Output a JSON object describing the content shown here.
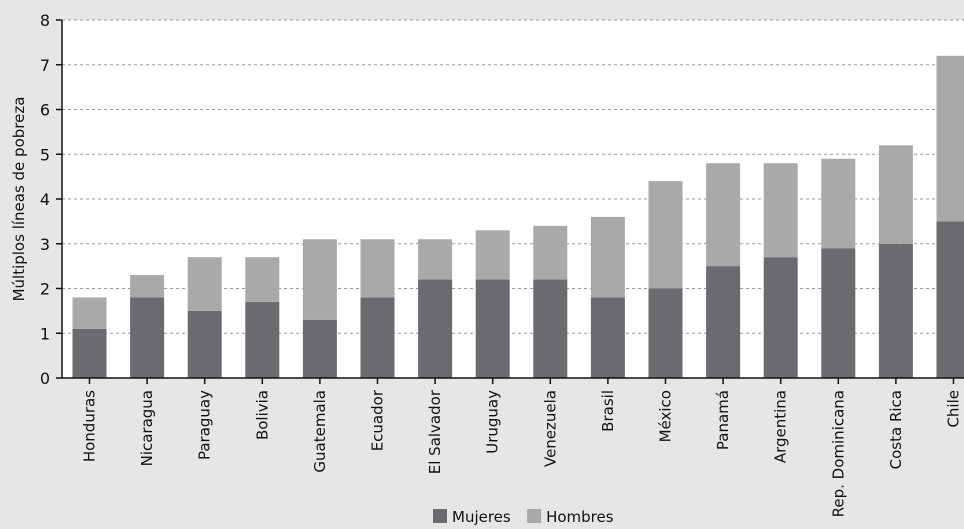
{
  "chart_data": {
    "type": "bar",
    "stacked": true,
    "title": "",
    "xlabel": "",
    "ylabel": "Múltiplos líneas de pobreza",
    "ylim": [
      0,
      8
    ],
    "yticks": [
      0,
      1,
      2,
      3,
      4,
      5,
      6,
      7,
      8
    ],
    "grid": true,
    "legend_position": "bottom-center",
    "categories": [
      "Honduras",
      "Nicaragua",
      "Paraguay",
      "Bolivia",
      "Guatemala",
      "Ecuador",
      "El Salvador",
      "Uruguay",
      "Venezuela",
      "Brasil",
      "México",
      "Panamá",
      "Argentina",
      "Rep. Dominicana",
      "Costa Rica",
      "Chile"
    ],
    "series": [
      {
        "name": "Mujeres",
        "color": "#6b6b6f",
        "values": [
          1.1,
          1.8,
          1.5,
          1.7,
          1.3,
          1.8,
          2.2,
          2.2,
          2.2,
          1.8,
          2.0,
          2.5,
          2.7,
          2.9,
          3.0,
          3.5
        ]
      },
      {
        "name": "Hombres",
        "color": "#a9a9ac",
        "values": [
          0.7,
          0.5,
          1.2,
          1.0,
          1.8,
          1.3,
          0.9,
          1.1,
          1.2,
          1.8,
          2.4,
          2.3,
          2.1,
          2.0,
          2.2,
          3.7
        ]
      }
    ]
  }
}
